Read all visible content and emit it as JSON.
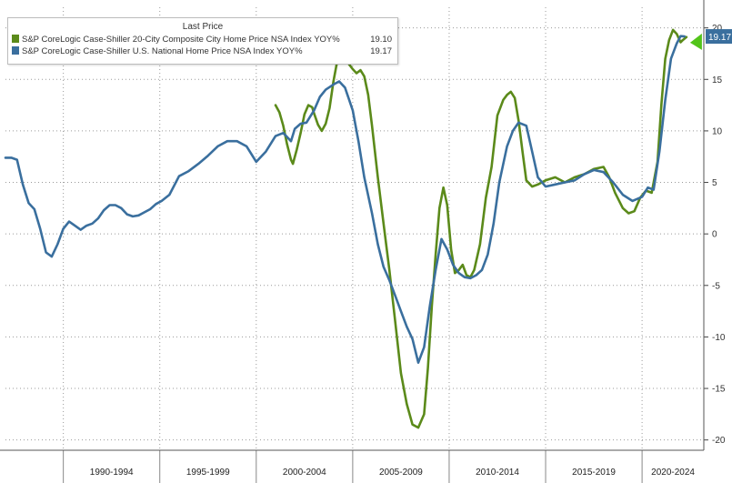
{
  "chart_data": {
    "type": "line",
    "title": "",
    "xlabel": "",
    "ylabel": "",
    "ylim": [
      -21,
      22
    ],
    "xlim": [
      1987.0,
      2023.2
    ],
    "y_ticks": [
      20,
      15,
      10,
      5,
      0,
      -5,
      -10,
      -15,
      -20
    ],
    "y_tick_labels": [
      "20",
      "15",
      "10",
      "5",
      "0",
      "-5",
      "-10",
      "-15",
      "-20"
    ],
    "x_period_labels": [
      "1990-1994",
      "1995-1999",
      "2000-2004",
      "2005-2009",
      "2010-2014",
      "2015-2019",
      "2020-2024"
    ],
    "grid": true,
    "legend_placement": "top-left",
    "legend_title": "Last Price",
    "series": [
      {
        "name": "S&P CoreLogic Case-Shiller 20-City Composite City Home Price NSA Index YOY%",
        "last_value": "19.10",
        "color": "#5b8a1a",
        "x": [
          2001.0,
          2001.2,
          2001.4,
          2001.6,
          2001.8,
          2001.9,
          2002.1,
          2002.3,
          2002.5,
          2002.7,
          2002.9,
          2003.0,
          2003.2,
          2003.4,
          2003.6,
          2003.8,
          2004.0,
          2004.2,
          2004.4,
          2004.6,
          2004.8,
          2005.0,
          2005.2,
          2005.4,
          2005.6,
          2005.8,
          2006.0,
          2006.3,
          2006.6,
          2006.9,
          2007.2,
          2007.5,
          2007.8,
          2008.1,
          2008.4,
          2008.7,
          2008.9,
          2009.1,
          2009.3,
          2009.5,
          2009.7,
          2009.9,
          2010.1,
          2010.3,
          2010.5,
          2010.7,
          2010.9,
          2011.1,
          2011.3,
          2011.6,
          2011.9,
          2012.2,
          2012.5,
          2012.8,
          2013.0,
          2013.2,
          2013.4,
          2013.6,
          2013.8,
          2014.0,
          2014.3,
          2014.6,
          2015.0,
          2015.5,
          2016.0,
          2016.5,
          2017.0,
          2017.5,
          2018.0,
          2018.3,
          2018.6,
          2019.0,
          2019.3,
          2019.6,
          2019.9,
          2020.2,
          2020.5,
          2020.8,
          2021.0,
          2021.2,
          2021.4,
          2021.6,
          2021.8,
          2022.0,
          2022.1,
          2022.3
        ],
        "y": [
          12.5,
          11.8,
          10.5,
          8.7,
          7.2,
          6.8,
          8.2,
          9.8,
          11.6,
          12.5,
          12.3,
          11.7,
          10.6,
          10.0,
          10.7,
          12.2,
          14.8,
          16.8,
          17.2,
          16.8,
          16.5,
          16.0,
          15.6,
          15.9,
          15.3,
          13.5,
          10.5,
          5.5,
          1.0,
          -3.5,
          -8.5,
          -13.5,
          -16.5,
          -18.5,
          -18.8,
          -17.5,
          -13.0,
          -7.0,
          -2.0,
          2.5,
          4.5,
          2.8,
          -1.5,
          -3.8,
          -3.5,
          -3.0,
          -4.0,
          -4.2,
          -3.5,
          -1.0,
          3.5,
          6.5,
          11.5,
          13.0,
          13.5,
          13.8,
          13.2,
          11.0,
          8.0,
          5.2,
          4.6,
          4.8,
          5.2,
          5.5,
          5.0,
          5.5,
          5.8,
          6.3,
          6.5,
          5.5,
          4.0,
          2.5,
          2.0,
          2.2,
          3.5,
          4.2,
          4.0,
          7.0,
          12.5,
          17.0,
          18.8,
          19.8,
          19.4,
          18.6,
          18.8,
          19.1
        ]
      },
      {
        "name": "S&P CoreLogic Case-Shiller U.S. National Home Price NSA Index YOY%",
        "last_value": "19.17",
        "color": "#3a6f9e",
        "x": [
          1987.0,
          1987.3,
          1987.6,
          1987.9,
          1988.2,
          1988.5,
          1988.8,
          1989.1,
          1989.4,
          1989.7,
          1990.0,
          1990.3,
          1990.6,
          1990.9,
          1991.2,
          1991.5,
          1991.8,
          1992.1,
          1992.4,
          1992.7,
          1993.0,
          1993.3,
          1993.6,
          1993.9,
          1994.2,
          1994.5,
          1994.8,
          1995.1,
          1995.5,
          1996.0,
          1996.5,
          1997.0,
          1997.5,
          1998.0,
          1998.5,
          1999.0,
          1999.5,
          2000.0,
          2000.5,
          2001.0,
          2001.4,
          2001.8,
          2002.0,
          2002.3,
          2002.6,
          2003.0,
          2003.3,
          2003.6,
          2004.0,
          2004.3,
          2004.6,
          2005.0,
          2005.3,
          2005.6,
          2006.0,
          2006.3,
          2006.6,
          2006.9,
          2007.2,
          2007.5,
          2007.8,
          2008.1,
          2008.4,
          2008.7,
          2009.0,
          2009.3,
          2009.6,
          2009.9,
          2010.2,
          2010.5,
          2010.8,
          2011.1,
          2011.4,
          2011.7,
          2012.0,
          2012.3,
          2012.6,
          2013.0,
          2013.3,
          2013.6,
          2014.0,
          2014.3,
          2014.6,
          2015.0,
          2015.5,
          2016.0,
          2016.5,
          2017.0,
          2017.5,
          2018.0,
          2018.5,
          2019.0,
          2019.5,
          2020.0,
          2020.3,
          2020.6,
          2020.9,
          2021.2,
          2021.5,
          2021.8,
          2022.0,
          2022.2
        ],
        "y": [
          7.4,
          7.4,
          7.2,
          4.8,
          3.0,
          2.4,
          0.5,
          -1.8,
          -2.2,
          -1.0,
          0.5,
          1.2,
          0.8,
          0.4,
          0.8,
          1.0,
          1.5,
          2.3,
          2.8,
          2.8,
          2.5,
          1.9,
          1.7,
          1.8,
          2.1,
          2.4,
          2.9,
          3.2,
          3.8,
          5.6,
          6.1,
          6.8,
          7.6,
          8.5,
          9.0,
          9.0,
          8.5,
          7.0,
          8.0,
          9.5,
          9.8,
          9.0,
          10.2,
          10.7,
          10.8,
          12.0,
          13.3,
          14.0,
          14.5,
          14.8,
          14.2,
          12.0,
          9.0,
          5.5,
          2.0,
          -1.0,
          -3.2,
          -4.5,
          -6.0,
          -7.5,
          -9.0,
          -10.2,
          -12.5,
          -11.0,
          -7.0,
          -3.5,
          -0.5,
          -1.5,
          -3.0,
          -3.8,
          -4.2,
          -4.3,
          -4.0,
          -3.5,
          -2.0,
          1.0,
          5.0,
          8.5,
          10.0,
          10.8,
          10.5,
          8.0,
          5.5,
          4.6,
          4.8,
          5.0,
          5.2,
          5.8,
          6.2,
          6.0,
          5.0,
          3.8,
          3.2,
          3.6,
          4.5,
          4.3,
          8.0,
          13.0,
          17.0,
          18.5,
          19.2,
          19.17
        ]
      }
    ]
  }
}
